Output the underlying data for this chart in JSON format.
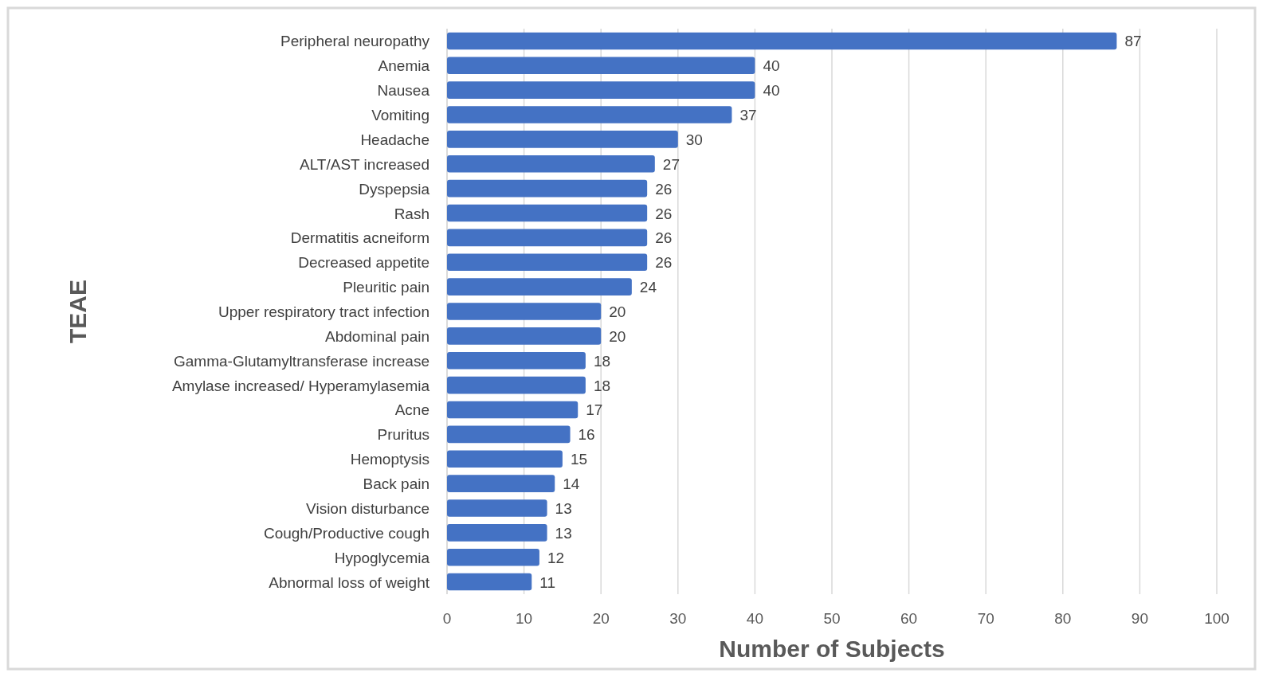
{
  "chart_data": {
    "type": "bar",
    "orientation": "horizontal",
    "xlabel": "Number of Subjects",
    "ylabel": "TEAE",
    "categories": [
      "Peripheral neuropathy",
      "Anemia",
      "Nausea",
      "Vomiting",
      "Headache",
      "ALT/AST increased",
      "Dyspepsia",
      "Rash",
      "Dermatitis acneiform",
      "Decreased appetite",
      "Pleuritic pain",
      "Upper respiratory tract infection",
      "Abdominal pain",
      "Gamma-Glutamyltransferase increase",
      "Amylase increased/ Hyperamylasemia",
      "Acne",
      "Pruritus",
      "Hemoptysis",
      "Back pain",
      "Vision disturbance",
      "Cough/Productive cough",
      "Hypoglycemia",
      "Abnormal loss of weight"
    ],
    "values": [
      87,
      40,
      40,
      37,
      30,
      27,
      26,
      26,
      26,
      26,
      24,
      20,
      20,
      18,
      18,
      17,
      16,
      15,
      14,
      13,
      13,
      12,
      11
    ],
    "color": "#4472c4",
    "xlim": [
      0,
      100
    ],
    "xticks": [
      0,
      10,
      20,
      30,
      40,
      50,
      60,
      70,
      80,
      90,
      100
    ],
    "grid": "x",
    "data_labels": true
  }
}
